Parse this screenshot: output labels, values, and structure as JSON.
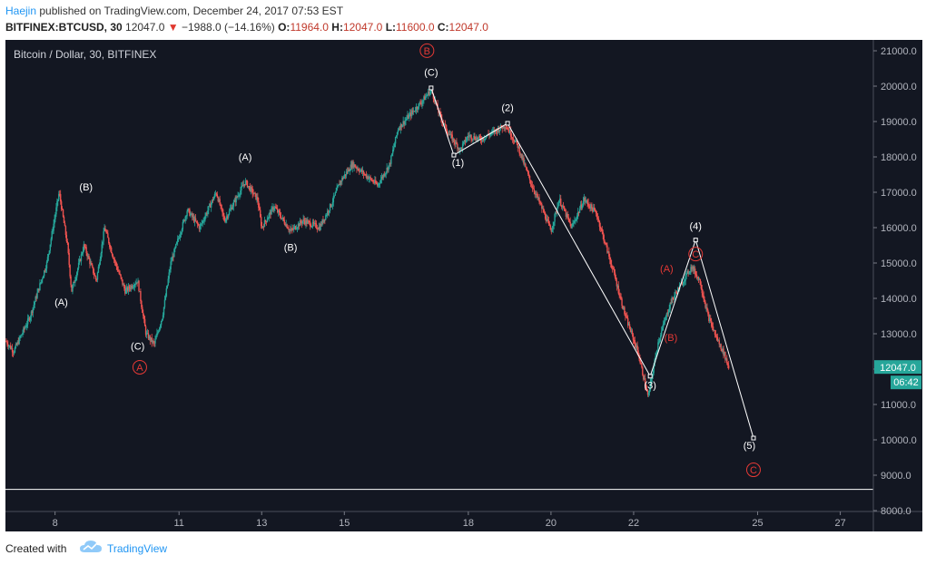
{
  "header": {
    "author": "Haejin",
    "published_text": " published on TradingView.com, December 24, 2017 07:53 EST",
    "symbol_line": {
      "symbol": "BITFINEX:BTCUSD, 30",
      "last": "12047.0",
      "change": "−1988.0 (−14.16%)",
      "o_label": "O:",
      "o": "11964.0",
      "h_label": "H:",
      "h": "12047.0",
      "l_label": "L:",
      "l": "11600.0",
      "c_label": "C:",
      "c": "12047.0"
    }
  },
  "chart_title": "Bitcoin / Dollar, 30, BITFINEX",
  "colors": {
    "background": "#131722",
    "up": "#26a69a",
    "down": "#ef5350",
    "wave_white": "#ffffff",
    "wave_red": "#e53935",
    "price_tag": "#26a69a",
    "axis_text": "#b2b5be"
  },
  "price_tag": {
    "price": "12047.0",
    "countdown": "06:42"
  },
  "footer": {
    "created_with": "Created with",
    "brand": "TradingView",
    "logo_icon": "tradingview-cloud-logo"
  },
  "chart_data": {
    "type": "candlestick",
    "symbol": "BITFINEX:BTCUSD",
    "interval": "30",
    "ylim": [
      8000,
      21000
    ],
    "y_ticks": [
      8000,
      9000,
      10000,
      11000,
      12000,
      13000,
      14000,
      15000,
      16000,
      17000,
      18000,
      19000,
      20000,
      21000
    ],
    "y_tick_labels": [
      "8000.0",
      "9000.0",
      "10000.0",
      "11000.0",
      "12000.0",
      "13000.0",
      "14000.0",
      "15000.0",
      "16000.0",
      "17000.0",
      "18000.0",
      "19000.0",
      "20000.0",
      "21000.0"
    ],
    "x_range_days": [
      6.8,
      27.8
    ],
    "x_ticks": [
      8,
      11,
      13,
      15,
      18,
      20,
      22,
      25,
      27
    ],
    "x_tick_labels": [
      "8",
      "11",
      "13",
      "15",
      "18",
      "20",
      "22",
      "25",
      "27"
    ],
    "horizontal_line": 8600,
    "price_path": [
      [
        6.8,
        12800
      ],
      [
        7.0,
        12500
      ],
      [
        7.4,
        13500
      ],
      [
        7.8,
        15000
      ],
      [
        8.1,
        17000
      ],
      [
        8.3,
        15500
      ],
      [
        8.4,
        14200
      ],
      [
        8.7,
        15500
      ],
      [
        9.0,
        14500
      ],
      [
        9.2,
        16000
      ],
      [
        9.4,
        15200
      ],
      [
        9.7,
        14200
      ],
      [
        10.0,
        14500
      ],
      [
        10.2,
        13000
      ],
      [
        10.4,
        12700
      ],
      [
        10.6,
        13500
      ],
      [
        10.8,
        15000
      ],
      [
        11.2,
        16500
      ],
      [
        11.5,
        16000
      ],
      [
        11.9,
        17000
      ],
      [
        12.1,
        16200
      ],
      [
        12.6,
        17300
      ],
      [
        12.9,
        16800
      ],
      [
        13.0,
        16000
      ],
      [
        13.3,
        16600
      ],
      [
        13.7,
        15900
      ],
      [
        14.0,
        16200
      ],
      [
        14.4,
        16000
      ],
      [
        14.7,
        16700
      ],
      [
        14.9,
        17300
      ],
      [
        15.2,
        17800
      ],
      [
        15.5,
        17500
      ],
      [
        15.8,
        17200
      ],
      [
        16.1,
        17800
      ],
      [
        16.3,
        18800
      ],
      [
        16.6,
        19200
      ],
      [
        16.9,
        19600
      ],
      [
        17.1,
        19900
      ],
      [
        17.3,
        19200
      ],
      [
        17.5,
        18700
      ],
      [
        17.8,
        18200
      ],
      [
        18.0,
        18600
      ],
      [
        18.3,
        18500
      ],
      [
        18.6,
        18700
      ],
      [
        18.9,
        18900
      ],
      [
        19.2,
        18300
      ],
      [
        19.5,
        17300
      ],
      [
        19.8,
        16500
      ],
      [
        20.0,
        15900
      ],
      [
        20.2,
        16800
      ],
      [
        20.5,
        16000
      ],
      [
        20.8,
        16800
      ],
      [
        21.1,
        16400
      ],
      [
        21.3,
        15600
      ],
      [
        21.5,
        14800
      ],
      [
        21.8,
        13500
      ],
      [
        22.1,
        12500
      ],
      [
        22.35,
        11200
      ],
      [
        22.6,
        12800
      ],
      [
        22.9,
        13900
      ],
      [
        23.1,
        14300
      ],
      [
        23.4,
        14900
      ],
      [
        23.6,
        14500
      ],
      [
        23.8,
        13500
      ],
      [
        24.0,
        12900
      ],
      [
        24.2,
        12400
      ],
      [
        24.3,
        12047
      ]
    ],
    "annotations": [
      {
        "label": "(A)",
        "x": 8.15,
        "y": 13800,
        "color": "white"
      },
      {
        "label": "(B)",
        "x": 8.75,
        "y": 17050,
        "color": "white"
      },
      {
        "label": "(C)",
        "x": 10.0,
        "y": 12550,
        "color": "white"
      },
      {
        "label": "A",
        "x": 10.05,
        "y": 11950,
        "color": "red",
        "circled": true
      },
      {
        "label": "(A)",
        "x": 12.6,
        "y": 17900,
        "color": "white"
      },
      {
        "label": "(B)",
        "x": 13.7,
        "y": 15350,
        "color": "white"
      },
      {
        "label": "B",
        "x": 17.0,
        "y": 20900,
        "color": "red",
        "circled": true
      },
      {
        "label": "(C)",
        "x": 17.1,
        "y": 20300,
        "color": "white"
      },
      {
        "label": "(1)",
        "x": 17.75,
        "y": 17750,
        "color": "white"
      },
      {
        "label": "(2)",
        "x": 18.95,
        "y": 19300,
        "color": "white"
      },
      {
        "label": "(3)",
        "x": 22.4,
        "y": 11450,
        "color": "white"
      },
      {
        "label": "(4)",
        "x": 23.5,
        "y": 15950,
        "color": "white"
      },
      {
        "label": "(5)",
        "x": 24.8,
        "y": 9750,
        "color": "white"
      },
      {
        "label": "C",
        "x": 24.9,
        "y": 9050,
        "color": "red",
        "circled": true
      },
      {
        "label": "(A)",
        "x": 22.8,
        "y": 14750,
        "color": "red"
      },
      {
        "label": "(B)",
        "x": 22.9,
        "y": 12800,
        "color": "red"
      },
      {
        "label": "C",
        "x": 23.5,
        "y": 15150,
        "color": "red",
        "circled": true
      }
    ],
    "wave_lines": [
      [
        [
          17.1,
          19950
        ],
        [
          17.65,
          18050
        ]
      ],
      [
        [
          17.65,
          18050
        ],
        [
          18.95,
          18950
        ]
      ],
      [
        [
          18.95,
          18950
        ],
        [
          22.4,
          11800
        ]
      ],
      [
        [
          22.4,
          11800
        ],
        [
          23.5,
          15650
        ]
      ],
      [
        [
          23.5,
          15650
        ],
        [
          24.9,
          10050
        ]
      ]
    ],
    "wave_points": [
      [
        17.1,
        19950
      ],
      [
        17.65,
        18050
      ],
      [
        18.95,
        18950
      ],
      [
        22.4,
        11800
      ],
      [
        23.5,
        15650
      ],
      [
        24.9,
        10050
      ]
    ]
  }
}
